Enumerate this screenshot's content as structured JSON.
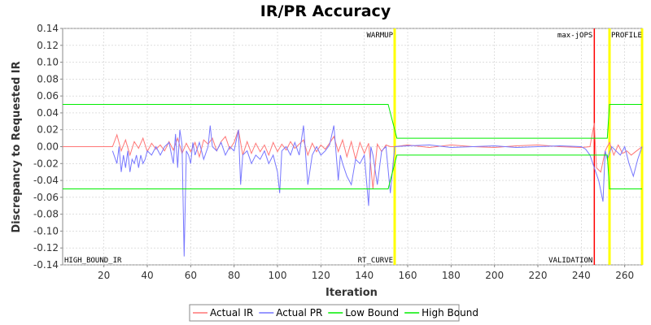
{
  "chart_data": {
    "type": "line",
    "title": "IR/PR Accuracy",
    "xlabel": "Iteration",
    "ylabel": "Discrepancy to Requested IR",
    "xlim": [
      1,
      268
    ],
    "ylim": [
      -0.14,
      0.14
    ],
    "x_ticks": [
      20,
      40,
      60,
      80,
      100,
      120,
      140,
      160,
      180,
      200,
      220,
      240,
      260
    ],
    "y_ticks": [
      -0.14,
      -0.12,
      -0.1,
      -0.08,
      -0.06,
      -0.04,
      -0.02,
      0.0,
      0.02,
      0.04,
      0.06,
      0.08,
      0.1,
      0.12,
      0.14
    ],
    "y_tick_labels": [
      "-0.14",
      "-0.12",
      "-0.10",
      "-0.08",
      "-0.06",
      "-0.04",
      "-0.02",
      "0.00",
      "0.02",
      "0.04",
      "0.06",
      "0.08",
      "0.10",
      "0.12",
      "0.14"
    ],
    "grid": true,
    "legend_position": "bottom",
    "markers": [
      {
        "label": "WARMUP",
        "x": 154,
        "color": "#ffff00",
        "label_position": "top"
      },
      {
        "label": "RT_CURVE",
        "x": 154,
        "color": "#ffff00",
        "label_position": "bottom"
      },
      {
        "label": "max-jOPS",
        "x": 246,
        "color": "#ff0000",
        "label_position": "top"
      },
      {
        "label": "VALIDATION",
        "x": 246,
        "color": "#ff0000",
        "label_position": "bottom"
      },
      {
        "label": "PROFILE",
        "x": 253,
        "color": "#ffff00",
        "label_position": "top"
      },
      {
        "label": "HIGH_BOUND_IR",
        "x": 268,
        "color": "#ffff00",
        "label_position": "bottom-left"
      }
    ],
    "series": [
      {
        "name": "Actual IR",
        "color": "#ff7777",
        "x": [
          1,
          24,
          26,
          28,
          30,
          32,
          34,
          36,
          38,
          40,
          42,
          44,
          46,
          48,
          50,
          52,
          54,
          56,
          58,
          60,
          62,
          64,
          66,
          68,
          70,
          72,
          74,
          76,
          78,
          80,
          82,
          84,
          86,
          88,
          90,
          92,
          94,
          96,
          98,
          100,
          102,
          104,
          106,
          108,
          110,
          112,
          114,
          116,
          118,
          120,
          122,
          124,
          126,
          128,
          130,
          132,
          134,
          136,
          138,
          140,
          142,
          144,
          146,
          148,
          150,
          152,
          154,
          160,
          170,
          180,
          190,
          200,
          210,
          220,
          230,
          240,
          244,
          246,
          247,
          249,
          251,
          253,
          255,
          257,
          259,
          261,
          263,
          265,
          268
        ],
        "y": [
          0.0,
          0.0,
          0.014,
          -0.005,
          0.008,
          -0.01,
          0.006,
          -0.002,
          0.01,
          -0.006,
          0.004,
          -0.003,
          0.002,
          -0.005,
          0.006,
          -0.004,
          0.01,
          -0.008,
          0.004,
          -0.006,
          0.005,
          -0.012,
          0.008,
          0.003,
          0.01,
          -0.005,
          0.006,
          0.012,
          -0.003,
          0.005,
          0.02,
          -0.01,
          0.006,
          -0.008,
          0.004,
          -0.006,
          0.002,
          -0.01,
          0.005,
          -0.006,
          0.003,
          -0.004,
          0.006,
          -0.002,
          0.003,
          0.008,
          -0.01,
          0.004,
          -0.006,
          0.002,
          -0.003,
          0.004,
          0.012,
          -0.006,
          0.008,
          -0.012,
          0.006,
          -0.015,
          0.005,
          -0.008,
          0.004,
          -0.05,
          0.003,
          -0.006,
          0.002,
          0.0,
          0.0,
          0.002,
          -0.001,
          0.002,
          0.0,
          -0.001,
          0.001,
          0.002,
          0.0,
          -0.001,
          0.0,
          0.028,
          -0.025,
          -0.03,
          -0.005,
          0.005,
          -0.01,
          0.002,
          -0.008,
          -0.005,
          -0.01,
          -0.006,
          0.0
        ]
      },
      {
        "name": "Actual PR",
        "color": "#7777ff",
        "x": [
          24,
          26,
          27,
          28,
          29,
          30,
          31,
          32,
          33,
          34,
          35,
          36,
          37,
          38,
          39,
          40,
          42,
          44,
          46,
          48,
          50,
          52,
          53,
          54,
          55,
          56,
          57,
          58,
          59,
          60,
          61,
          62,
          64,
          66,
          68,
          69,
          70,
          72,
          74,
          76,
          78,
          80,
          82,
          83,
          84,
          86,
          88,
          90,
          92,
          94,
          96,
          98,
          100,
          101,
          102,
          104,
          106,
          108,
          110,
          112,
          114,
          116,
          118,
          120,
          122,
          124,
          126,
          128,
          129,
          130,
          132,
          134,
          136,
          138,
          140,
          142,
          143,
          144,
          146,
          148,
          150,
          152,
          154,
          160,
          170,
          180,
          190,
          200,
          210,
          220,
          230,
          240,
          242,
          244,
          246,
          248,
          250,
          251,
          252,
          254,
          256,
          258,
          260,
          262,
          264,
          266,
          268
        ],
        "y": [
          -0.005,
          -0.02,
          0.0,
          -0.03,
          -0.01,
          -0.025,
          -0.005,
          -0.03,
          -0.015,
          -0.02,
          -0.01,
          -0.025,
          -0.01,
          -0.02,
          -0.015,
          -0.005,
          -0.01,
          0.0,
          -0.01,
          0.0,
          0.005,
          -0.02,
          0.015,
          -0.025,
          0.02,
          0.002,
          -0.13,
          -0.005,
          -0.01,
          -0.02,
          0.005,
          -0.01,
          0.005,
          -0.015,
          0.0,
          0.025,
          0.0,
          -0.005,
          0.005,
          -0.01,
          0.0,
          -0.005,
          0.02,
          -0.045,
          -0.01,
          -0.005,
          -0.02,
          -0.01,
          -0.015,
          -0.005,
          -0.02,
          -0.01,
          -0.03,
          -0.055,
          -0.005,
          0.0,
          -0.01,
          0.005,
          -0.01,
          0.025,
          -0.045,
          -0.01,
          0.0,
          -0.01,
          -0.005,
          0.002,
          0.025,
          -0.04,
          -0.01,
          -0.02,
          -0.035,
          -0.045,
          -0.015,
          -0.02,
          -0.01,
          -0.07,
          0.0,
          -0.01,
          -0.045,
          -0.005,
          0.0,
          -0.055,
          0.0,
          0.001,
          0.002,
          -0.001,
          0.0,
          0.001,
          -0.001,
          0.0,
          0.001,
          0.0,
          -0.003,
          -0.01,
          -0.025,
          -0.04,
          -0.065,
          -0.005,
          -0.015,
          0.0,
          -0.005,
          -0.01,
          0.0,
          -0.02,
          -0.035,
          -0.015,
          0.0
        ]
      },
      {
        "name": "Low Bound",
        "color": "#00ee00",
        "x": [
          1,
          151,
          155,
          246,
          247,
          252,
          253,
          268
        ],
        "y": [
          -0.05,
          -0.05,
          -0.01,
          -0.01,
          -0.01,
          -0.01,
          -0.05,
          -0.05
        ]
      },
      {
        "name": "High Bound",
        "color": "#00ee00",
        "x": [
          1,
          151,
          155,
          246,
          247,
          252,
          253,
          268
        ],
        "y": [
          0.05,
          0.05,
          0.01,
          0.01,
          0.01,
          0.01,
          0.05,
          0.05
        ]
      }
    ]
  }
}
